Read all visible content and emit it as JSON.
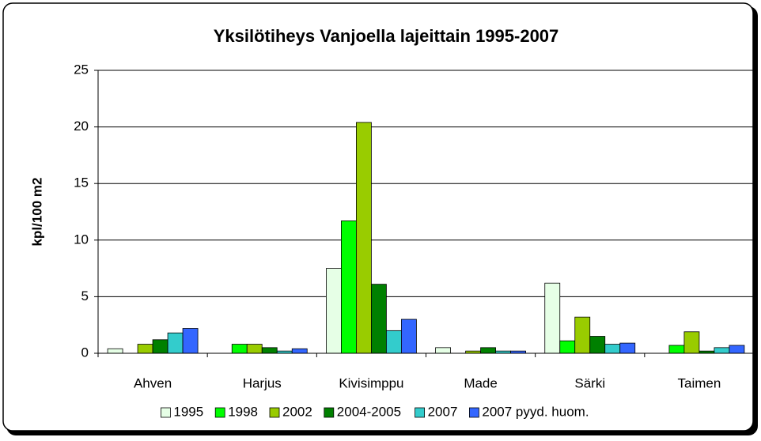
{
  "chart_data": {
    "type": "bar",
    "title": "Yksilötiheys Vanjoella lajeittain 1995-2007",
    "y_label": "kpl/100 m2",
    "categories": [
      "Ahven",
      "Harjus",
      "Kivisimppu",
      "Made",
      "Särki",
      "Taimen"
    ],
    "series": [
      {
        "name": "1995",
        "color": "#e6ffe6",
        "values": [
          0.4,
          0,
          7.5,
          0.5,
          6.2,
          0
        ]
      },
      {
        "name": "1998",
        "color": "#00ff00",
        "values": [
          0,
          0.8,
          11.7,
          0,
          1.1,
          0.7
        ]
      },
      {
        "name": "2002",
        "color": "#99cc00",
        "values": [
          0.8,
          0.8,
          20.4,
          0.2,
          3.2,
          1.9
        ]
      },
      {
        "name": "2004-2005",
        "color": "#008000",
        "values": [
          1.2,
          0.5,
          6.1,
          0.5,
          1.5,
          0.2
        ]
      },
      {
        "name": "2007",
        "color": "#33cccc",
        "values": [
          1.8,
          0.2,
          2.0,
          0.2,
          0.8,
          0.5
        ]
      },
      {
        "name": "2007 pyyd. huom.",
        "color": "#3366ff",
        "values": [
          2.2,
          0.4,
          3.0,
          0.2,
          0.9,
          0.7
        ]
      }
    ],
    "ylim": [
      0,
      25
    ],
    "yticks": [
      0,
      5,
      10,
      15,
      20,
      25
    ],
    "grid": true,
    "legend": "bottom"
  }
}
